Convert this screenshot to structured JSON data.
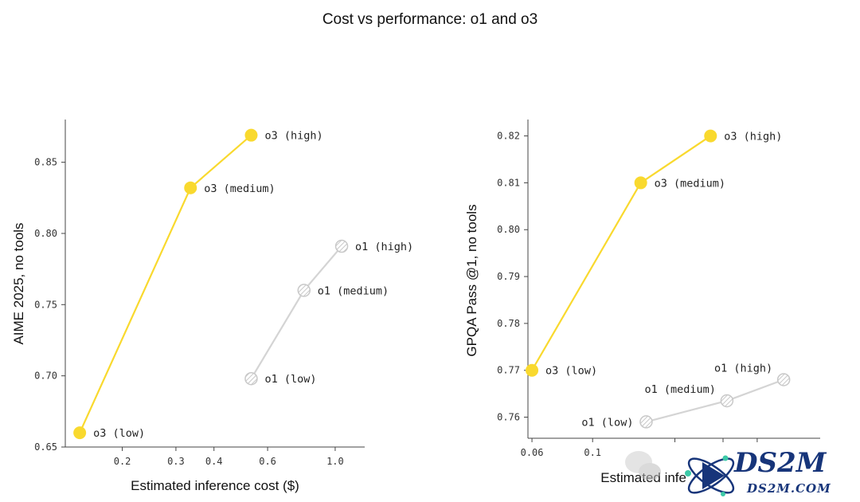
{
  "page_title": "Cost vs performance: o1 and o3",
  "colors": {
    "o3": "#F9D92E",
    "o1_line": "#D4D4D4",
    "o1_marker": "#C8C8C8",
    "axis": "#444444"
  },
  "chart_data": [
    {
      "type": "line",
      "xlabel": "Estimated inference cost ($)",
      "ylabel": "AIME 2025, no tools",
      "xscale": "log",
      "xlim": [
        0.13,
        1.25
      ],
      "ylim": [
        0.65,
        0.88
      ],
      "xticks": [
        0.2,
        0.3,
        0.4,
        0.6,
        1.0
      ],
      "xtick_labels": [
        "0.2",
        "0.3",
        "0.4",
        "0.6",
        "1.0"
      ],
      "yticks": [
        0.65,
        0.7,
        0.75,
        0.8,
        0.85
      ],
      "ytick_labels": [
        "0.65",
        "0.70",
        "0.75",
        "0.80",
        "0.85"
      ],
      "series": [
        {
          "name": "o3",
          "style": "solid",
          "points": [
            {
              "label": "o3 (low)",
              "x": 0.145,
              "y": 0.66,
              "label_side": "right"
            },
            {
              "label": "o3 (medium)",
              "x": 0.335,
              "y": 0.832,
              "label_side": "right"
            },
            {
              "label": "o3 (high)",
              "x": 0.53,
              "y": 0.869,
              "label_side": "right"
            }
          ]
        },
        {
          "name": "o1",
          "style": "hatched",
          "points": [
            {
              "label": "o1 (low)",
              "x": 0.53,
              "y": 0.698,
              "label_side": "right"
            },
            {
              "label": "o1 (medium)",
              "x": 0.79,
              "y": 0.76,
              "label_side": "right"
            },
            {
              "label": "o1 (high)",
              "x": 1.05,
              "y": 0.791,
              "label_side": "right"
            }
          ]
        }
      ]
    },
    {
      "type": "line",
      "xlabel": "Estimated infe",
      "ylabel": "GPQA Pass @1, no tools",
      "xscale": "log",
      "xlim": [
        0.058,
        0.68
      ],
      "ylim": [
        0.7555,
        0.8235
      ],
      "xticks": [
        0.06,
        0.1,
        0.2,
        0.3,
        0.4
      ],
      "xtick_labels": [
        "0.06",
        "0.1",
        "",
        "",
        ""
      ],
      "yticks": [
        0.76,
        0.77,
        0.78,
        0.79,
        0.8,
        0.81,
        0.82
      ],
      "ytick_labels": [
        "0.76",
        "0.77",
        "0.78",
        "0.79",
        "0.80",
        "0.81",
        "0.82"
      ],
      "series": [
        {
          "name": "o3",
          "style": "solid",
          "points": [
            {
              "label": "o3 (low)",
              "x": 0.06,
              "y": 0.77,
              "label_side": "right"
            },
            {
              "label": "o3 (medium)",
              "x": 0.15,
              "y": 0.81,
              "label_side": "right"
            },
            {
              "label": "o3 (high)",
              "x": 0.27,
              "y": 0.82,
              "label_side": "right"
            }
          ]
        },
        {
          "name": "o1",
          "style": "hatched",
          "points": [
            {
              "label": "o1 (low)",
              "x": 0.157,
              "y": 0.759,
              "label_side": "left"
            },
            {
              "label": "o1 (medium)",
              "x": 0.31,
              "y": 0.7635,
              "label_side": "above-left"
            },
            {
              "label": "o1 (high)",
              "x": 0.5,
              "y": 0.768,
              "label_side": "above-left"
            }
          ]
        }
      ]
    }
  ],
  "watermark": {
    "brand": "DS2M",
    "domain": "DS2M.COM"
  }
}
